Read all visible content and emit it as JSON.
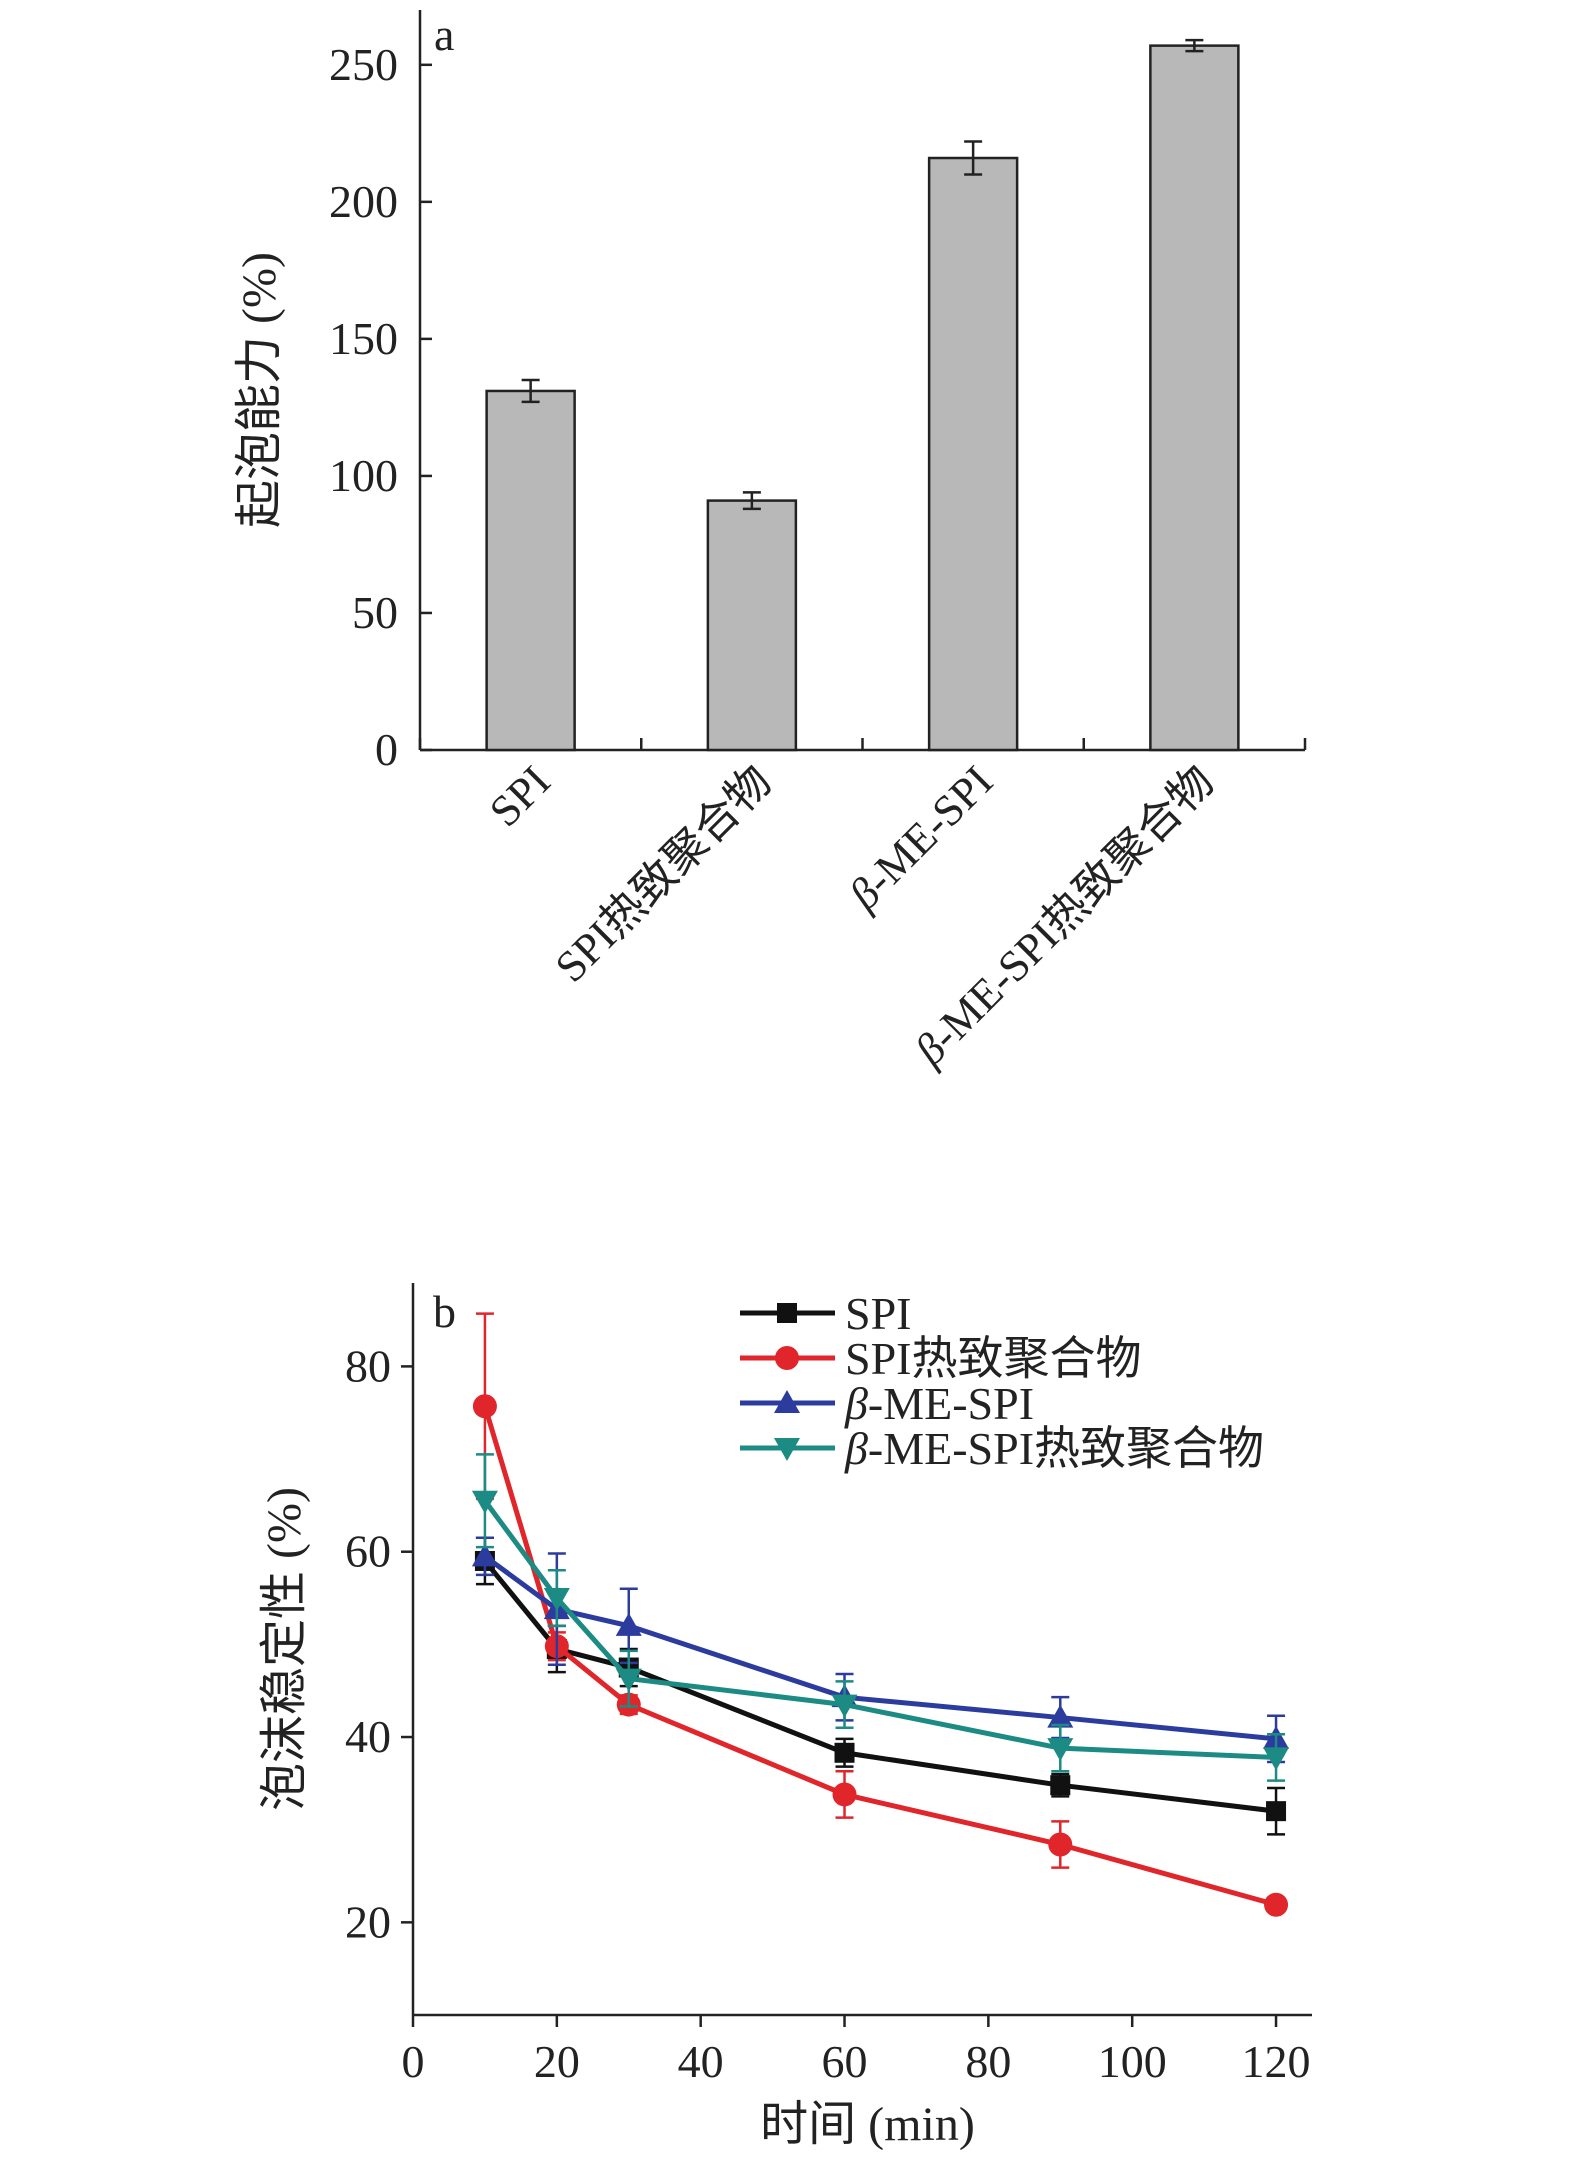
{
  "chart_data": [
    {
      "type": "bar",
      "panel_label": "a",
      "categories": [
        {
          "name": "SPI",
          "parts": [
            {
              "text": "SPI",
              "italic": false
            }
          ]
        },
        {
          "name": "SPI热致聚合物",
          "parts": [
            {
              "text": "SPI热致聚合物",
              "italic": false
            }
          ]
        },
        {
          "name": "β-ME-SPI",
          "parts": [
            {
              "text": "β",
              "italic": true
            },
            {
              "text": "-ME-SPI",
              "italic": false
            }
          ]
        },
        {
          "name": "β-ME-SPI热致聚合物",
          "parts": [
            {
              "text": "β",
              "italic": true
            },
            {
              "text": "-ME-SPI热致聚合物",
              "italic": false
            }
          ]
        }
      ],
      "values": [
        131,
        91,
        216,
        257
      ],
      "errors": [
        4,
        3,
        6,
        2
      ],
      "ylabel": "起泡能力 (%)",
      "xlabel": "",
      "ylim": [
        0,
        270
      ],
      "yticks": [
        0,
        50,
        100,
        150,
        200,
        250
      ],
      "bar_color": "#b8b8b8"
    },
    {
      "type": "line",
      "panel_label": "b",
      "x": [
        10,
        20,
        30,
        60,
        90,
        120
      ],
      "series": [
        {
          "name": "SPI",
          "label_parts": [
            {
              "text": "SPI",
              "italic": false
            }
          ],
          "color": "#111111",
          "marker": "square",
          "values": [
            59,
            49.5,
            47.5,
            38.3,
            34.8,
            32
          ],
          "errors": [
            2.5,
            2.5,
            2,
            1.5,
            1.2,
            2.5
          ]
        },
        {
          "name": "SPI热致聚合物",
          "label_parts": [
            {
              "text": "SPI热致聚合物",
              "italic": false
            }
          ],
          "color": "#e0262b",
          "marker": "circle",
          "values": [
            75.7,
            49.8,
            43.5,
            33.8,
            28.4,
            21.9
          ],
          "errors": [
            10,
            1.5,
            1,
            2.5,
            2.5,
            0.5
          ]
        },
        {
          "name": "β-ME-SPI",
          "label_parts": [
            {
              "text": "β",
              "italic": true
            },
            {
              "text": "-ME-SPI",
              "italic": false
            }
          ],
          "color": "#2b3c9e",
          "marker": "triangle-up",
          "values": [
            59.5,
            53.8,
            52,
            44.3,
            42.1,
            39.8
          ],
          "errors": [
            2,
            6,
            4,
            2.5,
            2.2,
            2.5
          ]
        },
        {
          "name": "β-ME-SPI热致聚合物",
          "label_parts": [
            {
              "text": "β",
              "italic": true
            },
            {
              "text": "-ME-SPI热致聚合物",
              "italic": false
            }
          ],
          "color": "#1c8b84",
          "marker": "triangle-down",
          "values": [
            65.5,
            55,
            46.3,
            43.5,
            38.8,
            37.8
          ],
          "errors": [
            5,
            3,
            3,
            2.5,
            2.5,
            2.5
          ]
        }
      ],
      "xlabel": "时间 (min)",
      "ylabel": "泡沫稳定性 (%)",
      "xlim": [
        0,
        125
      ],
      "ylim": [
        10,
        89
      ],
      "xticks": [
        0,
        20,
        40,
        60,
        80,
        100,
        120
      ],
      "yticks": [
        20,
        40,
        60,
        80
      ],
      "legend_position": "top-right"
    }
  ]
}
